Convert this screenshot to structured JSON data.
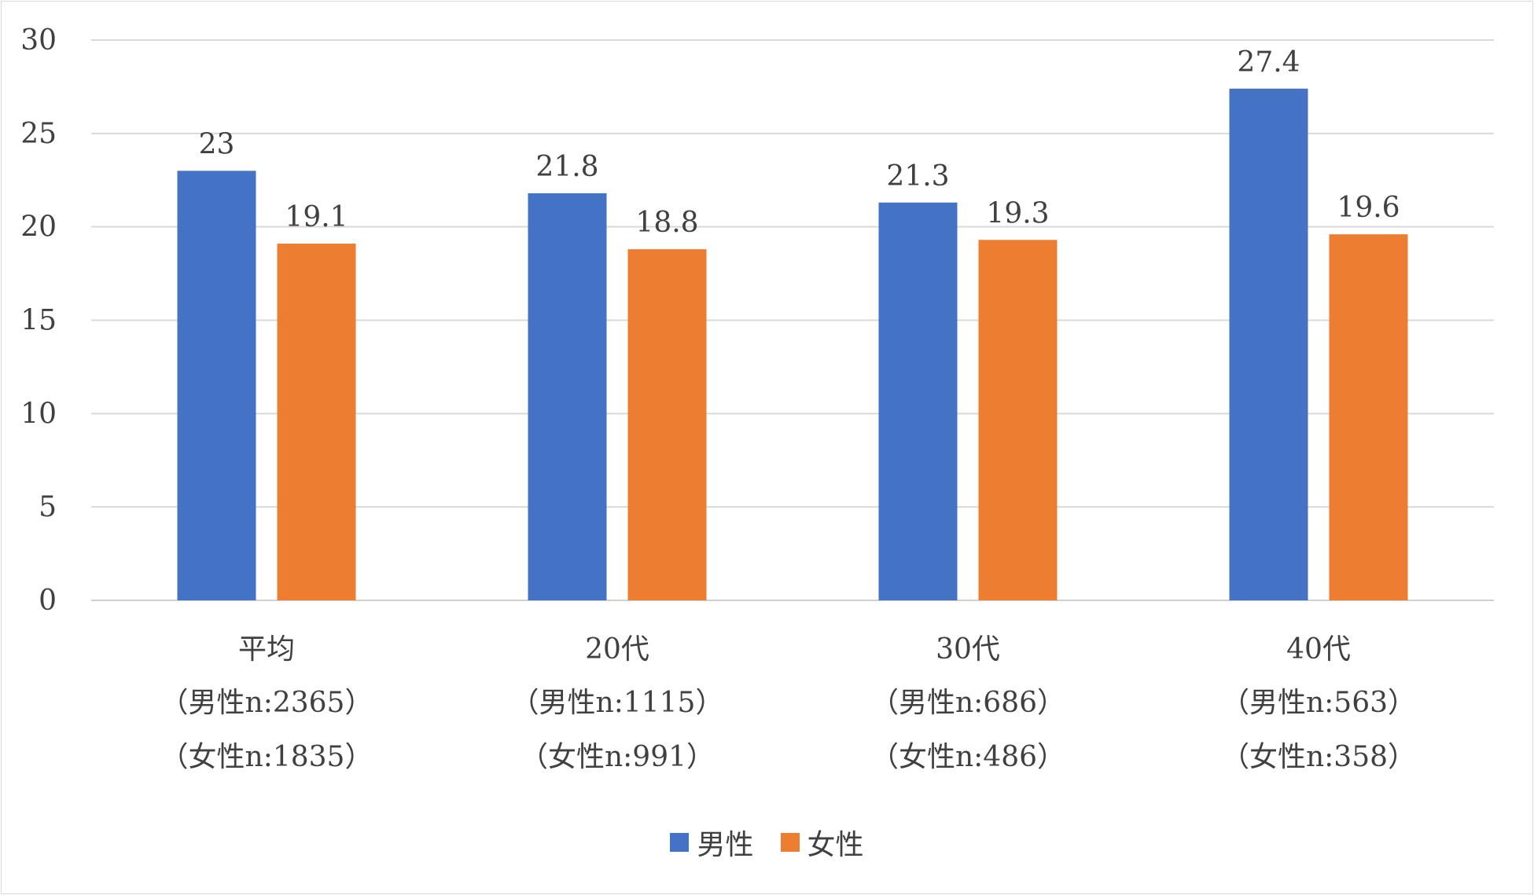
{
  "chart_data": {
    "type": "bar",
    "categories": [
      [
        "平均",
        "（男性n:2365）",
        "（女性n:1835）"
      ],
      [
        "20代",
        "（男性n:1115）",
        "（女性n:991）"
      ],
      [
        "30代",
        "（男性n:686）",
        "（女性n:486）"
      ],
      [
        "40代",
        "（男性n:563）",
        "（女性n:358）"
      ]
    ],
    "series": [
      {
        "name": "男性",
        "color": "#4472c4",
        "values": [
          23,
          21.8,
          21.3,
          27.4
        ]
      },
      {
        "name": "女性",
        "color": "#ed7d31",
        "values": [
          19.1,
          18.8,
          19.3,
          19.6
        ]
      }
    ],
    "ylim": [
      0,
      30
    ],
    "yticks": [
      0,
      5,
      10,
      15,
      20,
      25,
      30
    ],
    "grid": true,
    "legend": "bottom",
    "title": "",
    "xlabel": "",
    "ylabel": ""
  }
}
